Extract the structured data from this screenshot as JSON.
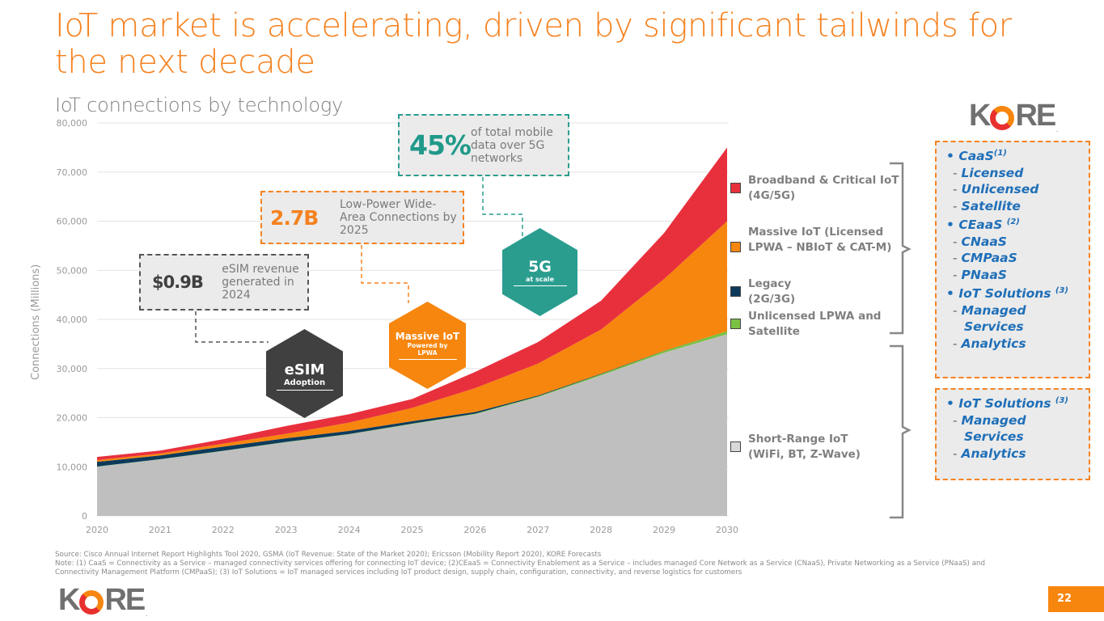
{
  "title": "IoT market is accelerating, driven by significant tailwinds for the next decade",
  "subtitle": "IoT connections by technology",
  "chart_data": {
    "type": "area",
    "stacked": true,
    "title": "IoT connections by technology",
    "xlabel": "",
    "ylabel": "Connections (Millions)",
    "ylim": [
      0,
      80000
    ],
    "y_ticks": [
      "0",
      "10,000",
      "20,000",
      "30,000",
      "40,000",
      "50,000",
      "60,000",
      "70,000",
      "80,000"
    ],
    "y_tick_values": [
      0,
      10000,
      20000,
      30000,
      40000,
      50000,
      60000,
      70000,
      80000
    ],
    "grid": true,
    "legend_position": "right",
    "categories": [
      "2020",
      "2021",
      "2022",
      "2023",
      "2024",
      "2025",
      "2026",
      "2027",
      "2028",
      "2029",
      "2030"
    ],
    "series": [
      {
        "name": "Short-Range IoT (WiFi, BT, Z-Wave)",
        "color": "#bfbfbf",
        "values": [
          10000,
          11500,
          13200,
          15000,
          16600,
          18700,
          20700,
          24200,
          28600,
          33200,
          37000
        ]
      },
      {
        "name": "Unlicensed LPWA and Satellite",
        "color": "#7ac143",
        "values": [
          50,
          50,
          60,
          60,
          70,
          80,
          100,
          150,
          250,
          350,
          600
        ]
      },
      {
        "name": "Legacy (2G/3G)",
        "color": "#0d3a5c",
        "values": [
          950,
          750,
          840,
          740,
          630,
          500,
          350,
          150,
          100,
          50,
          0
        ]
      },
      {
        "name": "Massive IoT (Licensed LPWA – NBIoT & CAT-M)",
        "color": "#f7860e",
        "values": [
          350,
          400,
          600,
          900,
          1700,
          2700,
          4850,
          6500,
          9000,
          14600,
          22400
        ]
      },
      {
        "name": "Broadband & Critical IoT (4G/5G)",
        "color": "#e8303d",
        "values": [
          650,
          600,
          900,
          1600,
          1700,
          1800,
          3300,
          4400,
          5850,
          9400,
          15000
        ]
      }
    ]
  },
  "callouts": {
    "esim": {
      "value": "$0.9B",
      "text": "eSIM revenue generated in 2024",
      "hex_title": "eSIM",
      "hex_sub": "Adoption"
    },
    "lpwa": {
      "value": "2.7B",
      "text": "Low-Power Wide-Area Connections by 2025",
      "hex_title": "Massive IoT",
      "hex_sub": "Powered by LPWA"
    },
    "fiveg": {
      "value": "45%",
      "text": "of total mobile data over 5G networks",
      "hex_title": "5G",
      "hex_sub": "at scale"
    }
  },
  "legend": [
    {
      "label": "Broadband & Critical IoT (4G/5G)",
      "color": "#e8303d"
    },
    {
      "label": "Massive IoT (Licensed LPWA – NBIoT & CAT-M)",
      "color": "#f7860e"
    },
    {
      "label": "Legacy (2G/3G)",
      "color": "#0d3a5c"
    },
    {
      "label": "Unlicensed LPWA and Satellite",
      "color": "#7ac143"
    },
    {
      "label": "Short-Range IoT (WiFi, BT, Z-Wave)",
      "color": "#d9d9d9"
    }
  ],
  "kore": {
    "logo_text_k": "K",
    "logo_text_re": "RE",
    "box1": [
      {
        "type": "top",
        "text": "CaaS",
        "sup": "(1)"
      },
      {
        "type": "sub",
        "text": "Licensed"
      },
      {
        "type": "sub",
        "text": "Unlicensed"
      },
      {
        "type": "sub",
        "text": "Satellite"
      },
      {
        "type": "top",
        "text": "CEaaS ",
        "sup": "(2)"
      },
      {
        "type": "sub",
        "text": "CNaaS"
      },
      {
        "type": "sub",
        "text": "CMPaaS"
      },
      {
        "type": "sub",
        "text": "PNaaS"
      },
      {
        "type": "top",
        "text": "IoT Solutions ",
        "sup": "(3)"
      },
      {
        "type": "sub",
        "text": "Managed Services"
      },
      {
        "type": "sub",
        "text": "Analytics"
      }
    ],
    "box2": [
      {
        "type": "top",
        "text": "IoT Solutions ",
        "sup": "(3)"
      },
      {
        "type": "sub",
        "text": "Managed Services"
      },
      {
        "type": "sub",
        "text": "Analytics"
      }
    ]
  },
  "footnote": {
    "source": "Source: Cisco Annual Internet Report Highlights Tool 2020, GSMA (IoT Revenue: State of the Market 2020); Ericsson (Mobility Report 2020), KORE Forecasts",
    "note": "Note: (1) CaaS = Connectivity as a Service – managed connectivity services offering for connecting IoT device; (2)CEaaS = Connectivity Enablement as a Service – includes managed Core Network as a Service (CNaaS), Private Networking as a Service (PNaaS) and Connectivity Management Platform (CMPaaS); (3) IoT Solutions = IoT managed services including IoT product design, supply chain, configuration, connectivity, and reverse logistics for customers"
  },
  "page_number": "22"
}
